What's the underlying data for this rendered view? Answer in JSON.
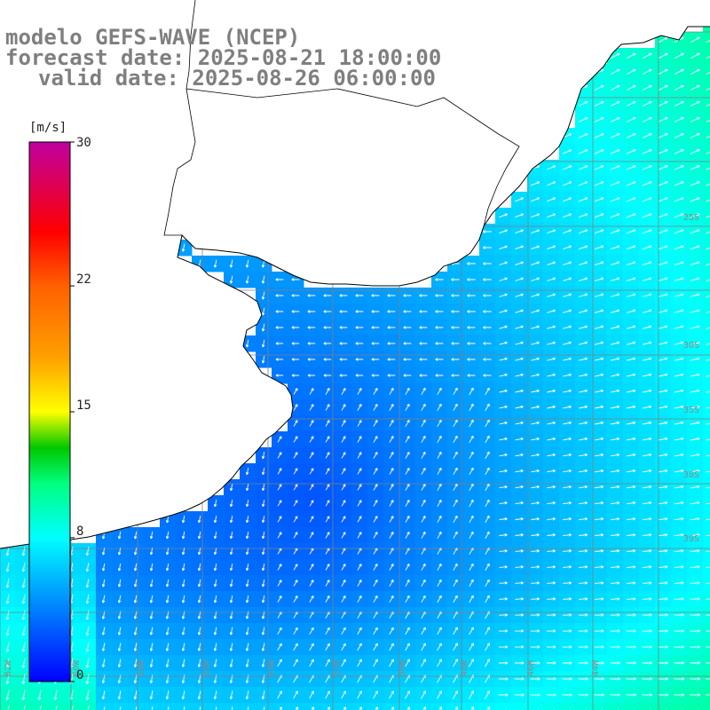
{
  "title": {
    "line1": "modelo GEFS-WAVE (NCEP)",
    "line2": "forecast date: 2025-08-21 18:00:00",
    "line3": "valid date: 2025-08-26 06:00:00"
  },
  "colorbar": {
    "unit": "[m/s]",
    "min": 0,
    "max": 30,
    "ticks": [
      {
        "value": 30,
        "label": "30"
      },
      {
        "value": 22,
        "label": "22"
      },
      {
        "value": 15,
        "label": "15"
      },
      {
        "value": 8,
        "label": "8"
      },
      {
        "value": 0,
        "label": "0"
      }
    ],
    "stops": [
      {
        "value": 0,
        "color": "#0000ff"
      },
      {
        "value": 4,
        "color": "#0080ff"
      },
      {
        "value": 8,
        "color": "#00ffff"
      },
      {
        "value": 11,
        "color": "#00ff80"
      },
      {
        "value": 13,
        "color": "#00c800"
      },
      {
        "value": 15,
        "color": "#ffff00"
      },
      {
        "value": 18,
        "color": "#ffa000"
      },
      {
        "value": 22,
        "color": "#ff6000"
      },
      {
        "value": 25,
        "color": "#ff0000"
      },
      {
        "value": 30,
        "color": "#c000a0"
      }
    ]
  },
  "grid_labels": {
    "right": [
      "25S",
      "30S",
      "35S",
      "38S",
      "39S"
    ],
    "bottom": [
      "62W",
      "60W",
      "58W",
      "56W",
      "54W",
      "52W",
      "50W",
      "48W",
      "46W",
      "44W"
    ]
  },
  "colors": {
    "land": "#ffffff",
    "coast": "#000000",
    "grid": "#808080",
    "arrows": "#ffffff",
    "title": "#7f7f7f"
  }
}
